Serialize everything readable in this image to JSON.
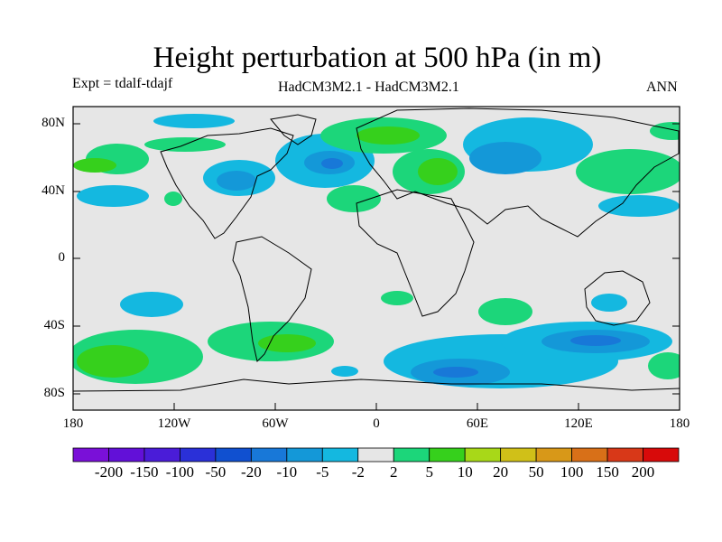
{
  "header": {
    "title": "Height perturbation at 500 hPa (in m)",
    "experiment": "Expt = tdalf-tdajf",
    "models": "HadCM3M2.1 - HadCM3M2.1",
    "season": "ANN"
  },
  "axes": {
    "lat_labels": [
      "80N",
      "40N",
      "0",
      "40S",
      "80S"
    ],
    "lon_labels": [
      "180",
      "120W",
      "60W",
      "0",
      "60E",
      "120E",
      "180"
    ]
  },
  "colorbar": {
    "labels": [
      "-200",
      "-150",
      "-100",
      "-50",
      "-20",
      "-10",
      "-5",
      "-2",
      "2",
      "5",
      "10",
      "20",
      "50",
      "100",
      "150",
      "200"
    ],
    "colors": [
      "#7a10d8",
      "#6210d8",
      "#4a1cd8",
      "#2a30d8",
      "#1050d0",
      "#1878d8",
      "#1498d8",
      "#14b8e0",
      "#e6e6e6",
      "#1cd67a",
      "#36d01c",
      "#a8d818",
      "#d0c018",
      "#d89818",
      "#d87018",
      "#d83818",
      "#d80a0a"
    ]
  },
  "colors": {
    "ocean_background": "#e6e6e6",
    "blue_light": "#14b8e0",
    "blue_mid": "#1498d8",
    "blue_dark": "#1878d8",
    "green_light": "#1cd67a",
    "green_dark": "#36d01c"
  }
}
